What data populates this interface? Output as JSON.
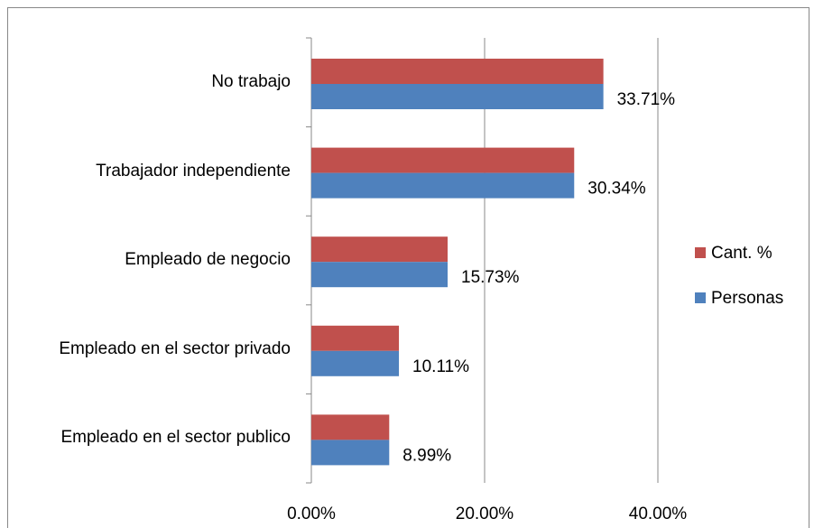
{
  "chart_data": {
    "type": "bar",
    "orientation": "horizontal",
    "categories": [
      "No trabajo",
      "Trabajador independiente",
      "Empleado de negocio",
      "Empleado en el sector privado",
      "Empleado en el sector publico"
    ],
    "series": [
      {
        "name": "Cant. %",
        "color": "#c0504d",
        "values": [
          33.71,
          30.34,
          15.73,
          10.11,
          8.99
        ]
      },
      {
        "name": "Personas",
        "color": "#4f81bd",
        "values": [
          33.71,
          30.34,
          15.73,
          10.11,
          8.99
        ],
        "value_labels": [
          "33.71%",
          "30.34%",
          "15.73%",
          "10.11%",
          "8.99%"
        ]
      }
    ],
    "xlim": [
      0,
      40
    ],
    "xticks": [
      {
        "value": 0,
        "label": "0.00%"
      },
      {
        "value": 20,
        "label": "20.00%"
      },
      {
        "value": 40,
        "label": "40.00%"
      }
    ],
    "grid": true,
    "legend": "right"
  }
}
